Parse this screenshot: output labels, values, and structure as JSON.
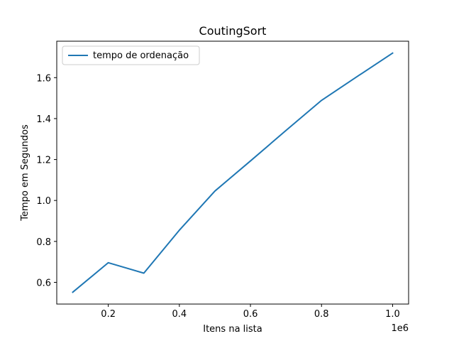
{
  "chart_data": {
    "type": "line",
    "title": "CoutingSort",
    "xlabel": "Itens na lista",
    "ylabel": "Tempo em Segundos",
    "x_offset_label": "1e6",
    "x_scale": 1000000,
    "xlim": [
      55000,
      1045000
    ],
    "ylim": [
      0.494,
      1.778
    ],
    "x_ticks": [
      0.2,
      0.4,
      0.6,
      0.8,
      1.0
    ],
    "x_tick_labels": [
      "0.2",
      "0.4",
      "0.6",
      "0.8",
      "1.0"
    ],
    "y_ticks": [
      0.6,
      0.8,
      1.0,
      1.2,
      1.4,
      1.6
    ],
    "y_tick_labels": [
      "0.6",
      "0.8",
      "1.0",
      "1.2",
      "1.4",
      "1.6"
    ],
    "grid": false,
    "legend_position": "top-left",
    "series": [
      {
        "name": "tempo de ordenação",
        "color": "#1f77b4",
        "x": [
          100000,
          200000,
          300000,
          400000,
          500000,
          600000,
          700000,
          800000,
          900000,
          1000000
        ],
        "y": [
          0.552,
          0.696,
          0.645,
          0.855,
          1.046,
          1.193,
          1.342,
          1.489,
          1.605,
          1.72
        ]
      }
    ]
  }
}
